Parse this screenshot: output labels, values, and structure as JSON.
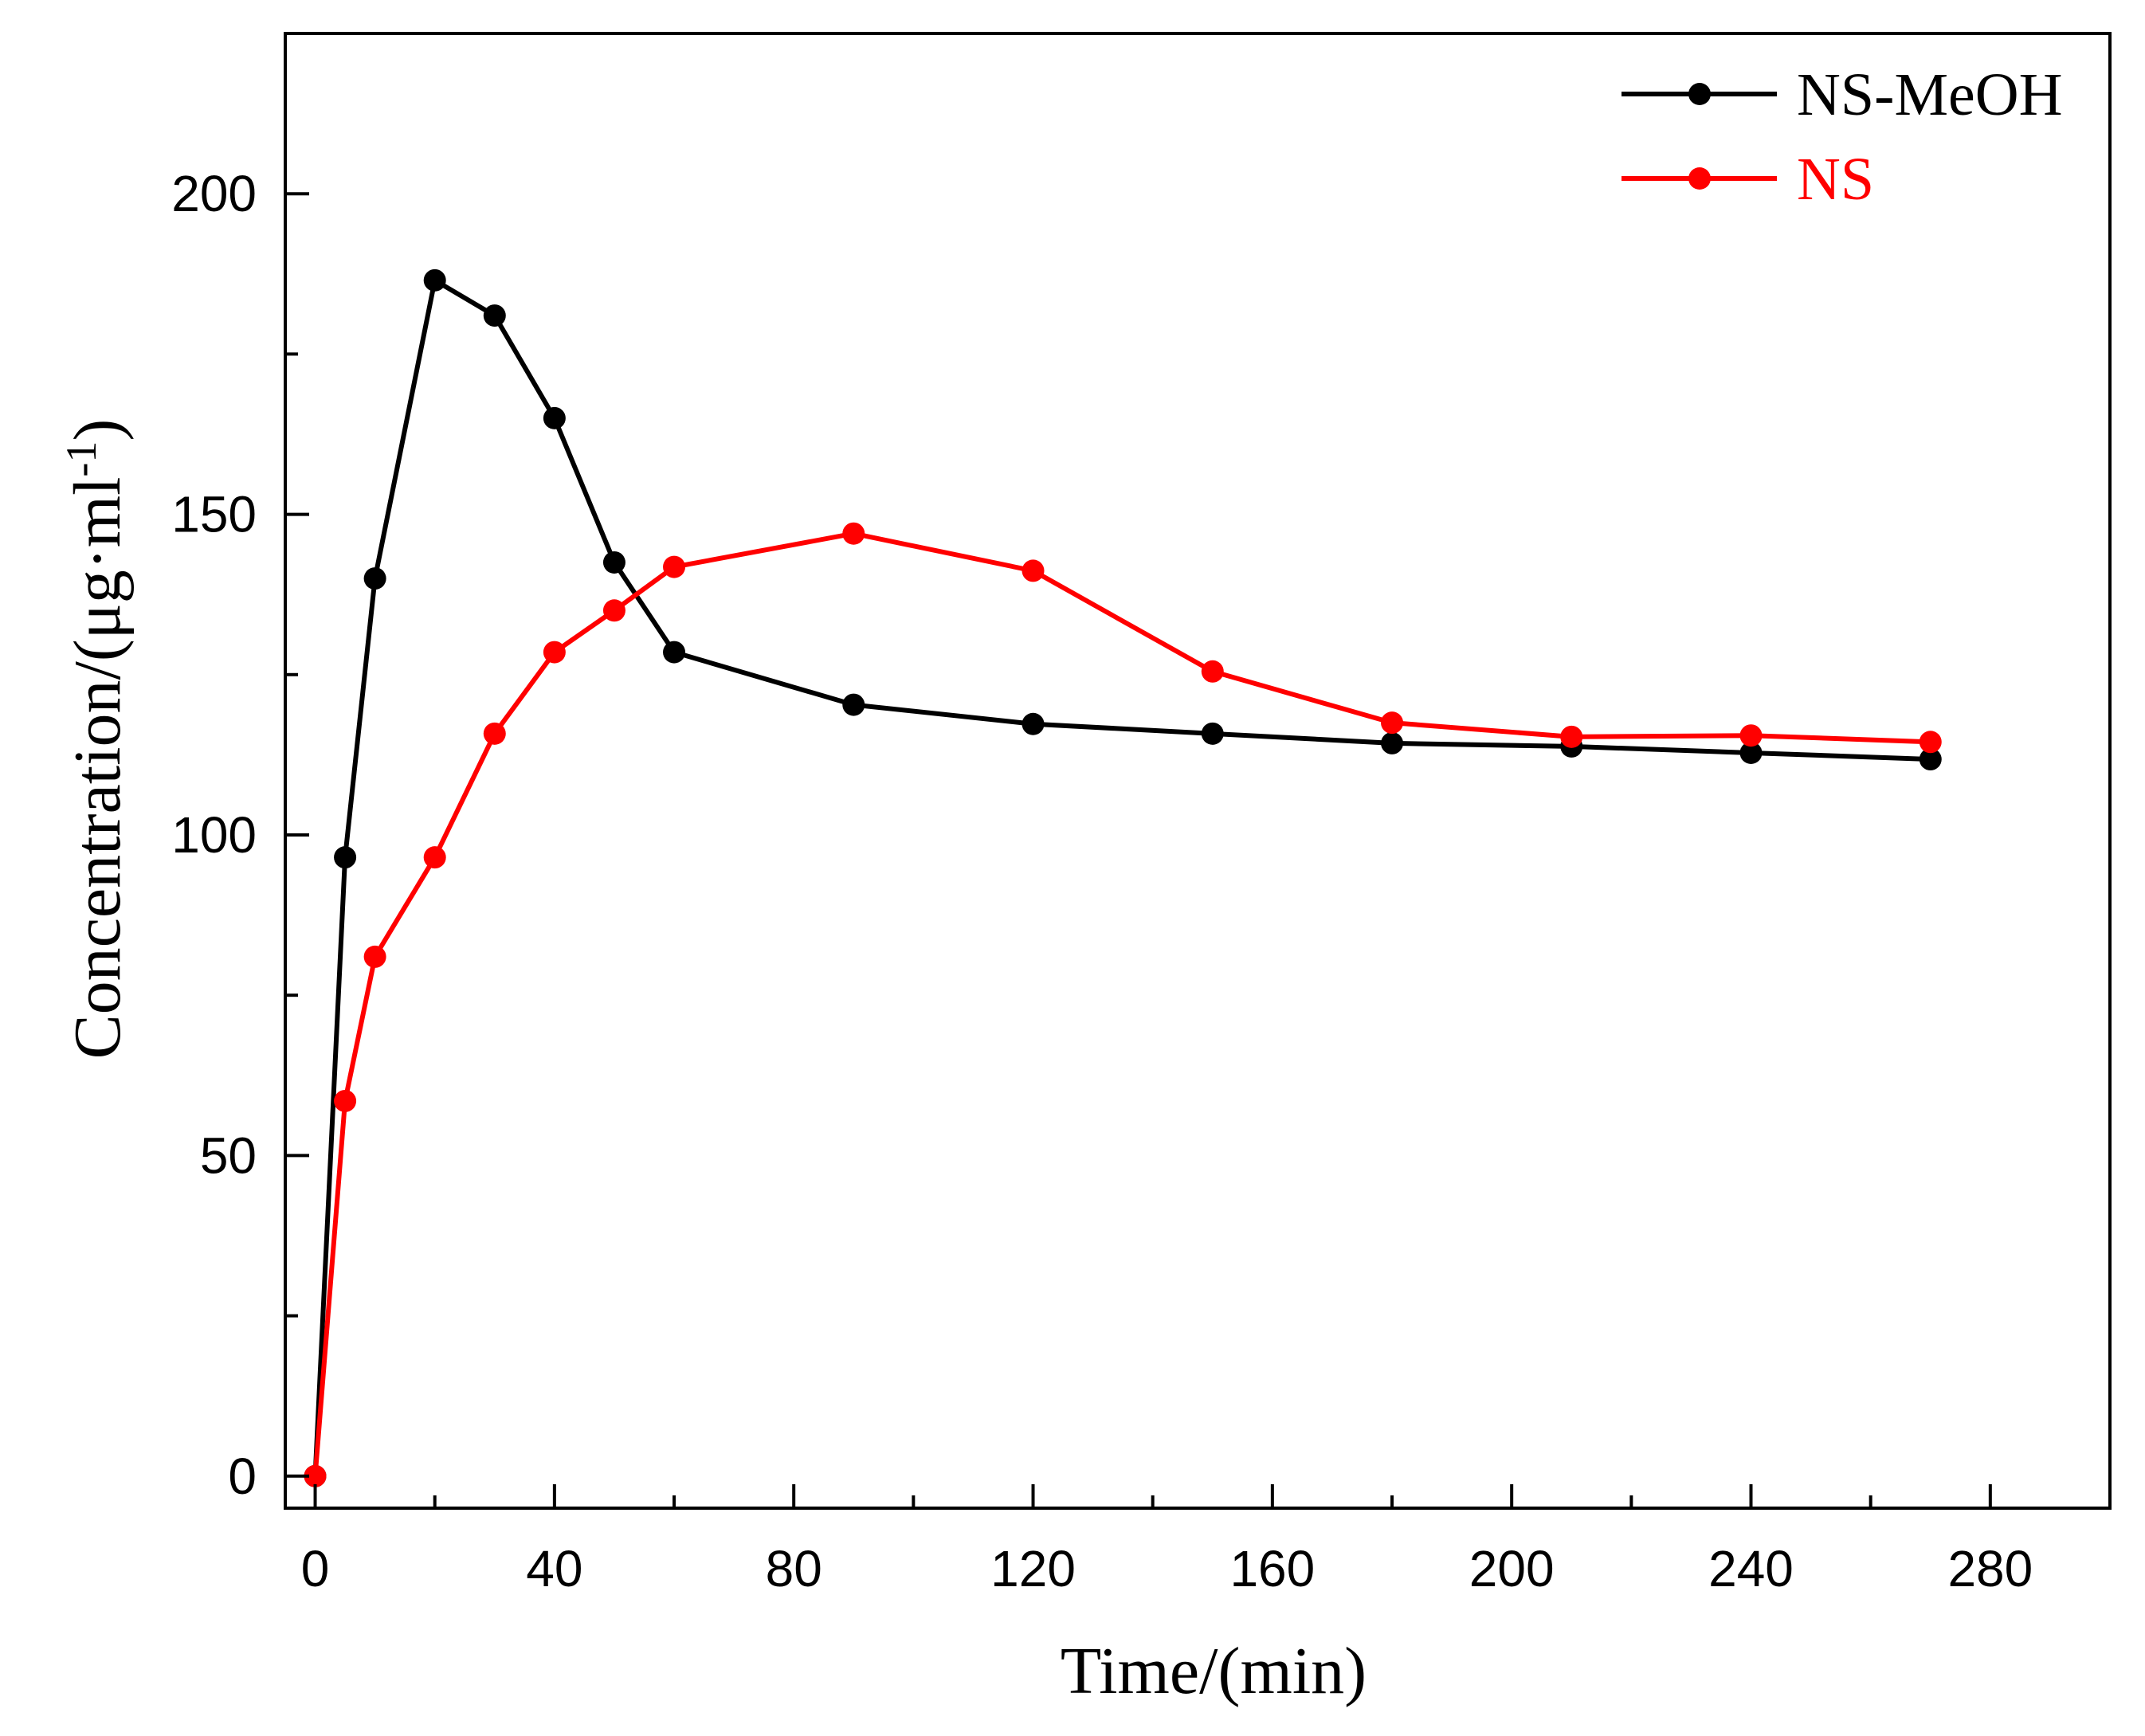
{
  "chart_data": {
    "type": "line",
    "title": "",
    "xlabel": "Time/(min)",
    "ylabel_main": "Concentration/(μg·ml",
    "ylabel_sup": "-1",
    "ylabel_close": ")",
    "xlim": [
      -5,
      300
    ],
    "ylim": [
      -5,
      225
    ],
    "x_ticks": [
      0,
      40,
      80,
      120,
      160,
      200,
      240,
      280
    ],
    "x_minor_ticks": [
      20,
      60,
      100,
      140,
      180,
      220,
      260
    ],
    "y_ticks": [
      0,
      50,
      100,
      150,
      200
    ],
    "y_minor_ticks": [
      25,
      75,
      125,
      175
    ],
    "legend_position": "top-right",
    "series": [
      {
        "name": "NS-MeOH",
        "color": "#000000",
        "x": [
          0,
          5,
          10,
          20,
          30,
          40,
          50,
          60,
          90,
          120,
          150,
          180,
          210,
          240,
          270
        ],
        "y": [
          0,
          96.5,
          140,
          186.5,
          181,
          165,
          142.5,
          128.5,
          120.3,
          117.3,
          115.8,
          114.3,
          113.8,
          112.8,
          111.8
        ]
      },
      {
        "name": "NS",
        "color": "#ff0000",
        "x": [
          0,
          5,
          10,
          20,
          30,
          40,
          50,
          60,
          90,
          120,
          150,
          180,
          210,
          240,
          270
        ],
        "y": [
          0,
          58.5,
          81,
          96.5,
          115.8,
          128.5,
          135,
          141.8,
          147,
          141.2,
          125.5,
          117.5,
          115.3,
          115.5,
          114.5
        ]
      }
    ]
  }
}
